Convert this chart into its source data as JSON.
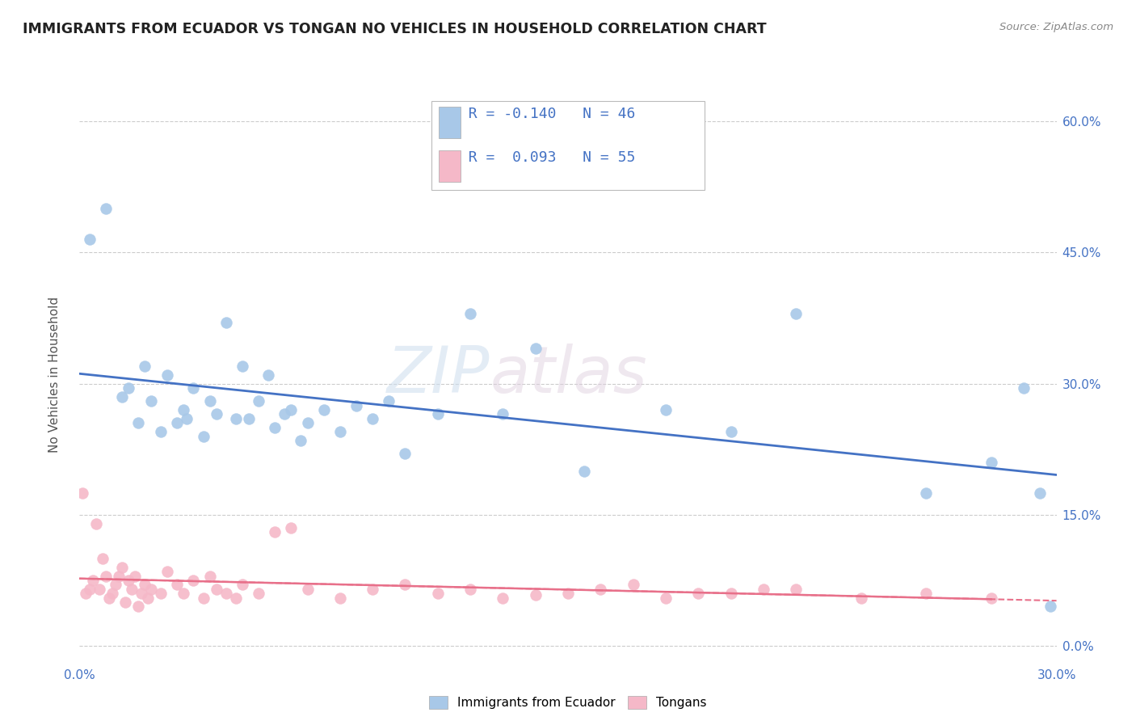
{
  "title": "IMMIGRANTS FROM ECUADOR VS TONGAN NO VEHICLES IN HOUSEHOLD CORRELATION CHART",
  "source_text": "Source: ZipAtlas.com",
  "ylabel": "No Vehicles in Household",
  "xlim": [
    0.0,
    0.3
  ],
  "ylim": [
    -0.02,
    0.64
  ],
  "yticks": [
    0.0,
    0.15,
    0.3,
    0.45,
    0.6
  ],
  "ytick_labels": [
    "0.0%",
    "15.0%",
    "30.0%",
    "45.0%",
    "60.0%"
  ],
  "xtick_labels": [
    "0.0%",
    "30.0%"
  ],
  "legend_label1": "Immigrants from Ecuador",
  "legend_label2": "Tongans",
  "r1": -0.14,
  "n1": 46,
  "r2": 0.093,
  "n2": 55,
  "blue_color": "#a8c8e8",
  "pink_color": "#f5b8c8",
  "blue_line_color": "#4472C4",
  "pink_line_color": "#E8708A",
  "watermark_zip": "ZIP",
  "watermark_atlas": "atlas",
  "ecuador_x": [
    0.003,
    0.008,
    0.013,
    0.015,
    0.018,
    0.02,
    0.022,
    0.025,
    0.027,
    0.03,
    0.032,
    0.033,
    0.035,
    0.038,
    0.04,
    0.042,
    0.045,
    0.048,
    0.05,
    0.052,
    0.055,
    0.058,
    0.06,
    0.063,
    0.065,
    0.068,
    0.07,
    0.075,
    0.08,
    0.085,
    0.09,
    0.095,
    0.1,
    0.11,
    0.12,
    0.13,
    0.14,
    0.155,
    0.18,
    0.2,
    0.22,
    0.26,
    0.28,
    0.29,
    0.295,
    0.298
  ],
  "ecuador_y": [
    0.465,
    0.5,
    0.285,
    0.295,
    0.255,
    0.32,
    0.28,
    0.245,
    0.31,
    0.255,
    0.27,
    0.26,
    0.295,
    0.24,
    0.28,
    0.265,
    0.37,
    0.26,
    0.32,
    0.26,
    0.28,
    0.31,
    0.25,
    0.265,
    0.27,
    0.235,
    0.255,
    0.27,
    0.245,
    0.275,
    0.26,
    0.28,
    0.22,
    0.265,
    0.38,
    0.265,
    0.34,
    0.2,
    0.27,
    0.245,
    0.38,
    0.175,
    0.21,
    0.295,
    0.175,
    0.045
  ],
  "tongan_x": [
    0.001,
    0.002,
    0.003,
    0.004,
    0.005,
    0.006,
    0.007,
    0.008,
    0.009,
    0.01,
    0.011,
    0.012,
    0.013,
    0.014,
    0.015,
    0.016,
    0.017,
    0.018,
    0.019,
    0.02,
    0.021,
    0.022,
    0.025,
    0.027,
    0.03,
    0.032,
    0.035,
    0.038,
    0.04,
    0.042,
    0.045,
    0.048,
    0.05,
    0.055,
    0.06,
    0.065,
    0.07,
    0.08,
    0.09,
    0.1,
    0.11,
    0.12,
    0.13,
    0.14,
    0.15,
    0.16,
    0.17,
    0.18,
    0.19,
    0.2,
    0.21,
    0.22,
    0.24,
    0.26,
    0.28
  ],
  "tongan_y": [
    0.175,
    0.06,
    0.065,
    0.075,
    0.14,
    0.065,
    0.1,
    0.08,
    0.055,
    0.06,
    0.07,
    0.08,
    0.09,
    0.05,
    0.075,
    0.065,
    0.08,
    0.045,
    0.06,
    0.07,
    0.055,
    0.065,
    0.06,
    0.085,
    0.07,
    0.06,
    0.075,
    0.055,
    0.08,
    0.065,
    0.06,
    0.055,
    0.07,
    0.06,
    0.13,
    0.135,
    0.065,
    0.055,
    0.065,
    0.07,
    0.06,
    0.065,
    0.055,
    0.058,
    0.06,
    0.065,
    0.07,
    0.055,
    0.06,
    0.06,
    0.065,
    0.065,
    0.055,
    0.06,
    0.055
  ]
}
